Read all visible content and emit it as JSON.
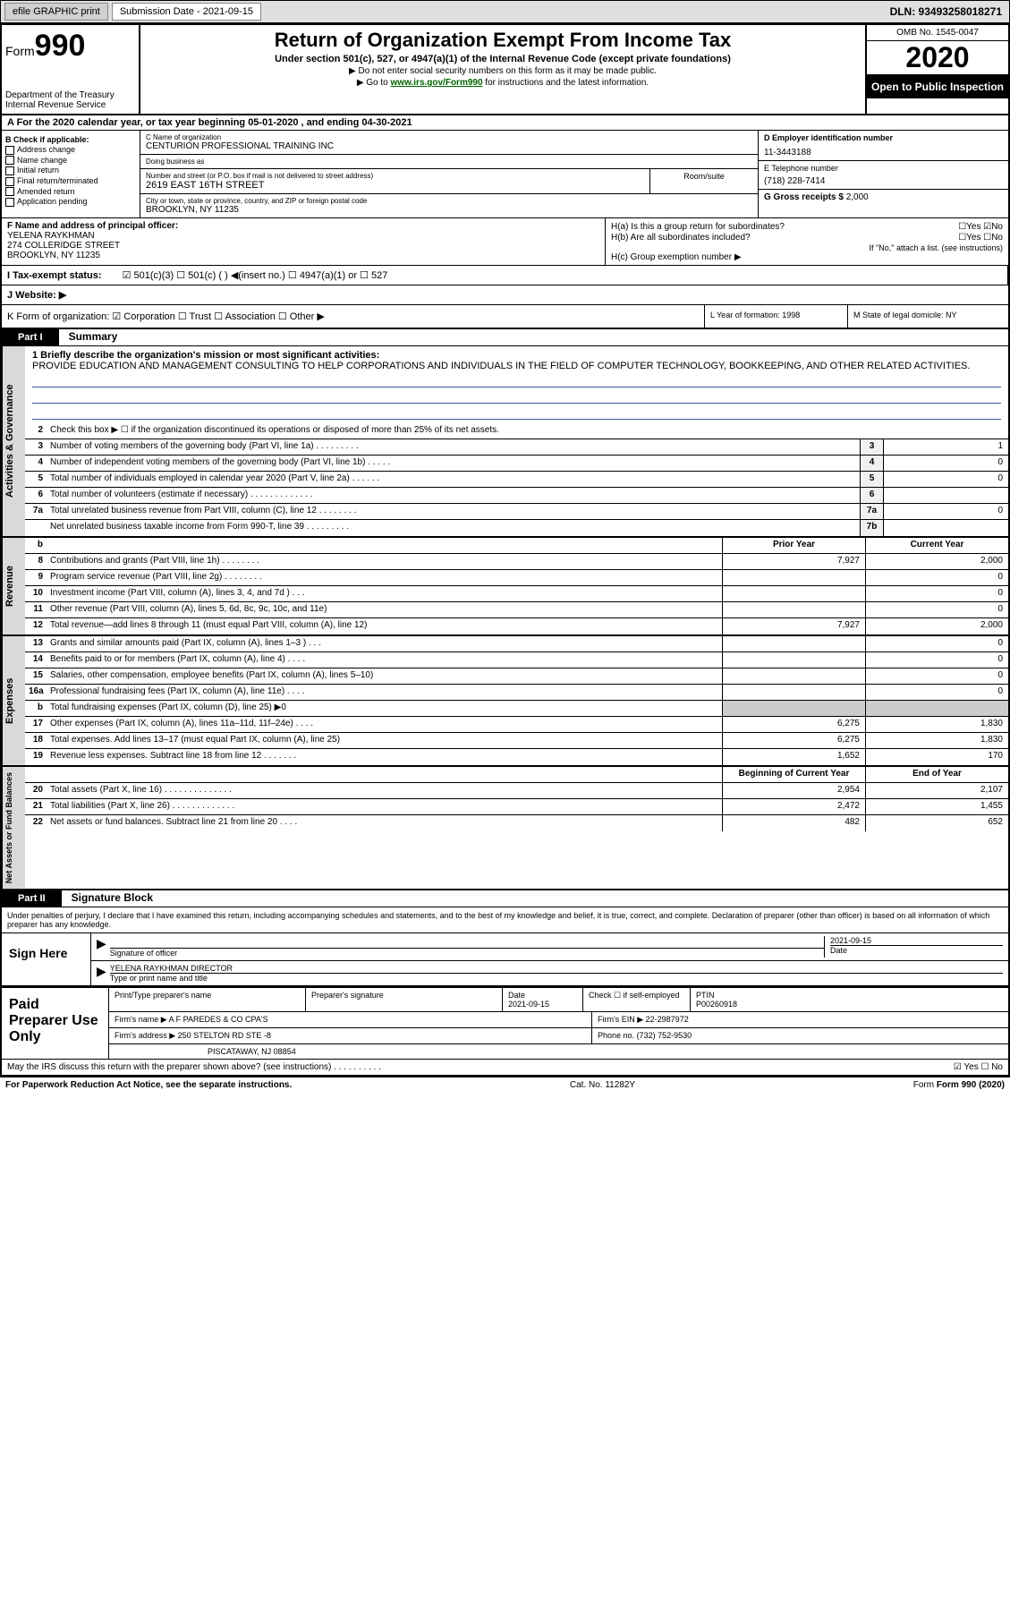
{
  "header_bar": {
    "efile": "efile GRAPHIC print",
    "sub_label": "Submission Date - 2021-09-15",
    "dln": "DLN: 93493258018271"
  },
  "top": {
    "form": "Form",
    "num": "990",
    "dept": "Department of the Treasury Internal Revenue Service",
    "title": "Return of Organization Exempt From Income Tax",
    "subtitle": "Under section 501(c), 527, or 4947(a)(1) of the Internal Revenue Code (except private foundations)",
    "instr1": "▶ Do not enter social security numbers on this form as it may be made public.",
    "instr2_pre": "▶ Go to ",
    "instr2_link": "www.irs.gov/Form990",
    "instr2_post": " for instructions and the latest information.",
    "omb": "OMB No. 1545-0047",
    "year": "2020",
    "open_public": "Open to Public Inspection"
  },
  "row_a": "A For the 2020 calendar year, or tax year beginning 05-01-2020   , and ending 04-30-2021",
  "col_b": {
    "title": "B Check if applicable:",
    "items": [
      "Address change",
      "Name change",
      "Initial return",
      "Final return/terminated",
      "Amended return",
      "Application pending"
    ]
  },
  "col_c": {
    "name_label": "C Name of organization",
    "name": "CENTURION PROFESSIONAL TRAINING INC",
    "dba_label": "Doing business as",
    "dba": "",
    "addr_label": "Number and street (or P.O. box if mail is not delivered to street address)",
    "addr": "2619 EAST 16TH STREET",
    "room_label": "Room/suite",
    "city_label": "City or town, state or province, country, and ZIP or foreign postal code",
    "city": "BROOKLYN, NY  11235"
  },
  "col_d": {
    "ein_label": "D Employer identification number",
    "ein": "11-3443188",
    "tel_label": "E Telephone number",
    "tel": "(718) 228-7414",
    "gross_label": "G Gross receipts $",
    "gross": "2,000"
  },
  "col_f": {
    "label": "F  Name and address of principal officer:",
    "name": "YELENA RAYKHMAN",
    "addr1": "274 COLLERIDGE STREET",
    "addr2": "BROOKLYN, NY  11235"
  },
  "col_h": {
    "ha": "H(a)  Is this a group return for subordinates?",
    "ha_ans": "☐Yes  ☑No",
    "hb": "H(b)  Are all subordinates included?",
    "hb_ans": "☐Yes  ☐No",
    "hb_note": "If \"No,\" attach a list. (see instructions)",
    "hc": "H(c)  Group exemption number ▶"
  },
  "row_i": {
    "label": "I  Tax-exempt status:",
    "opts": "☑ 501(c)(3)   ☐ 501(c) (  ) ◀(insert no.)   ☐ 4947(a)(1) or   ☐ 527"
  },
  "row_j": "J  Website: ▶",
  "row_k": "K Form of organization:  ☑ Corporation  ☐ Trust  ☐ Association  ☐ Other ▶",
  "row_l": "L Year of formation: 1998",
  "row_m": "M State of legal domicile: NY",
  "parts": {
    "p1": "Part I",
    "p1_title": "Summary",
    "p2": "Part II",
    "p2_title": "Signature Block"
  },
  "summary": {
    "line1": "1  Briefly describe the organization's mission or most significant activities:",
    "mission": "PROVIDE EDUCATION AND MANAGEMENT CONSULTING TO HELP CORPORATIONS AND INDIVIDUALS IN THE FIELD OF COMPUTER TECHNOLOGY, BOOKKEEPING, AND OTHER RELATED ACTIVITIES.",
    "line2": "Check this box ▶ ☐  if the organization discontinued its operations or disposed of more than 25% of its net assets.",
    "gov_rows": [
      {
        "n": "3",
        "t": "Number of voting members of the governing body (Part VI, line 1a)  .   .   .   .   .   .   .   .   .",
        "bn": "3",
        "v": "1"
      },
      {
        "n": "4",
        "t": "Number of independent voting members of the governing body (Part VI, line 1b)  .   .   .   .   .",
        "bn": "4",
        "v": "0"
      },
      {
        "n": "5",
        "t": "Total number of individuals employed in calendar year 2020 (Part V, line 2a)  .   .   .   .   .   .",
        "bn": "5",
        "v": "0"
      },
      {
        "n": "6",
        "t": "Total number of volunteers (estimate if necessary)   .   .   .   .   .   .   .   .   .   .   .   .   .",
        "bn": "6",
        "v": ""
      },
      {
        "n": "7a",
        "t": "Total unrelated business revenue from Part VIII, column (C), line 12  .   .   .   .   .   .   .   .",
        "bn": "7a",
        "v": "0"
      },
      {
        "n": "",
        "t": "Net unrelated business taxable income from Form 990-T, line 39   .   .   .   .   .   .   .   .   .",
        "bn": "7b",
        "v": ""
      }
    ],
    "hdr_py": "Prior Year",
    "hdr_cy": "Current Year",
    "rev_rows": [
      {
        "n": "8",
        "t": "Contributions and grants (Part VIII, line 1h)   .   .   .   .   .   .   .   .",
        "py": "7,927",
        "cy": "2,000"
      },
      {
        "n": "9",
        "t": "Program service revenue (Part VIII, line 2g)   .   .   .   .   .   .   .   .",
        "py": "",
        "cy": "0"
      },
      {
        "n": "10",
        "t": "Investment income (Part VIII, column (A), lines 3, 4, and 7d )   .   .   .",
        "py": "",
        "cy": "0"
      },
      {
        "n": "11",
        "t": "Other revenue (Part VIII, column (A), lines 5, 6d, 8c, 9c, 10c, and 11e)",
        "py": "",
        "cy": "0"
      },
      {
        "n": "12",
        "t": "Total revenue—add lines 8 through 11 (must equal Part VIII, column (A), line 12)",
        "py": "7,927",
        "cy": "2,000"
      }
    ],
    "exp_rows": [
      {
        "n": "13",
        "t": "Grants and similar amounts paid (Part IX, column (A), lines 1–3 )  .   .   .",
        "py": "",
        "cy": "0"
      },
      {
        "n": "14",
        "t": "Benefits paid to or for members (Part IX, column (A), line 4)   .   .   .   .",
        "py": "",
        "cy": "0"
      },
      {
        "n": "15",
        "t": "Salaries, other compensation, employee benefits (Part IX, column (A), lines 5–10)",
        "py": "",
        "cy": "0"
      },
      {
        "n": "16a",
        "t": "Professional fundraising fees (Part IX, column (A), line 11e)   .   .   .   .",
        "py": "",
        "cy": "0"
      },
      {
        "n": "b",
        "t": "Total fundraising expenses (Part IX, column (D), line 25) ▶0",
        "py": "SHADE",
        "cy": "SHADE"
      },
      {
        "n": "17",
        "t": "Other expenses (Part IX, column (A), lines 11a–11d, 11f–24e)   .   .   .   .",
        "py": "6,275",
        "cy": "1,830"
      },
      {
        "n": "18",
        "t": "Total expenses. Add lines 13–17 (must equal Part IX, column (A), line 25)",
        "py": "6,275",
        "cy": "1,830"
      },
      {
        "n": "19",
        "t": "Revenue less expenses. Subtract line 18 from line 12  .   .   .   .   .   .   .",
        "py": "1,652",
        "cy": "170"
      }
    ],
    "hdr_boy": "Beginning of Current Year",
    "hdr_eoy": "End of Year",
    "net_rows": [
      {
        "n": "20",
        "t": "Total assets (Part X, line 16)  .   .   .   .   .   .   .   .   .   .   .   .   .   .",
        "py": "2,954",
        "cy": "2,107"
      },
      {
        "n": "21",
        "t": "Total liabilities (Part X, line 26)  .   .   .   .   .   .   .   .   .   .   .   .   .",
        "py": "2,472",
        "cy": "1,455"
      },
      {
        "n": "22",
        "t": "Net assets or fund balances. Subtract line 21 from line 20  .   .   .   .",
        "py": "482",
        "cy": "652"
      }
    ]
  },
  "vtabs": {
    "gov": "Activities & Governance",
    "rev": "Revenue",
    "exp": "Expenses",
    "net": "Net Assets or Fund Balances"
  },
  "sig": {
    "decl": "Under penalties of perjury, I declare that I have examined this return, including accompanying schedules and statements, and to the best of my knowledge and belief, it is true, correct, and complete. Declaration of preparer (other than officer) is based on all information of which preparer has any knowledge.",
    "sign_here": "Sign Here",
    "sig_label": "Signature of officer",
    "date_label": "Date",
    "date": "2021-09-15",
    "name": "YELENA RAYKHMAN  DIRECTOR",
    "name_label": "Type or print name and title"
  },
  "prep": {
    "label": "Paid Preparer Use Only",
    "r1": {
      "c1": "Print/Type preparer's name",
      "c2": "Preparer's signature",
      "c3": "Date",
      "c3v": "2021-09-15",
      "c4": "Check ☐  if self-employed",
      "c5": "PTIN",
      "c5v": "P00260918"
    },
    "r2": {
      "c1": "Firm's name     ▶",
      "c1v": "A F PAREDES & CO CPA'S",
      "c2": "Firm's EIN ▶",
      "c2v": "22-2987972"
    },
    "r3": {
      "c1": "Firm's address ▶",
      "c1v": "250 STELTON RD STE -8",
      "c2": "Phone no.",
      "c2v": "(732) 752-9530"
    },
    "r4": "PISCATAWAY, NJ  08854"
  },
  "discuss": {
    "q": "May the IRS discuss this return with the preparer shown above? (see instructions)   .   .   .   .   .   .   .   .   .   .",
    "ans": "☑ Yes  ☐ No"
  },
  "footer": {
    "l": "For Paperwork Reduction Act Notice, see the separate instructions.",
    "m": "Cat. No. 11282Y",
    "r": "Form 990 (2020)"
  }
}
